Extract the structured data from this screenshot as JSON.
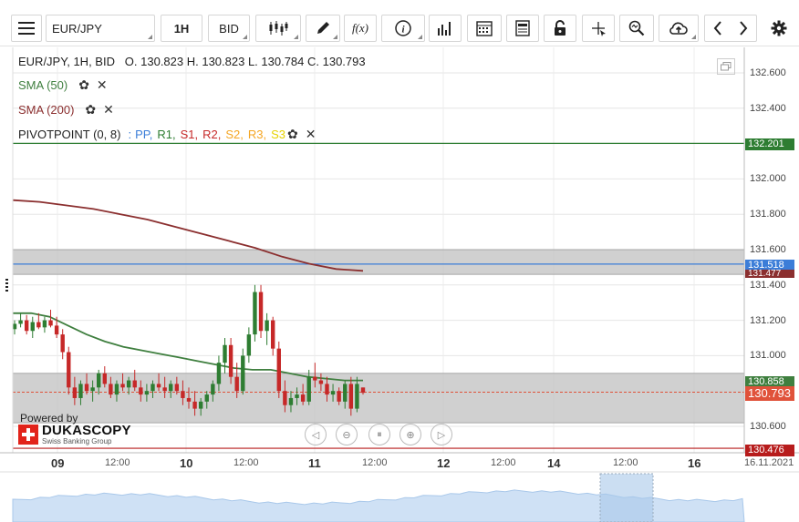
{
  "toolbar": {
    "instrument": "EUR/JPY",
    "period": "1H",
    "side": "BID",
    "function_label": "f(x)"
  },
  "legend": {
    "ohlc": "EUR/JPY, 1H, BID   O. 130.823 H. 130.823 L. 130.784 C. 130.793",
    "sma50": "SMA (50)",
    "sma200": "SMA (200)",
    "pivot_prefix": "PIVOTPOINT (0, 8)",
    "pivot_sep": ":",
    "pivot_items": [
      {
        "label": "PP,",
        "color": "#3b7dd8"
      },
      {
        "label": "R1,",
        "color": "#2e7d32"
      },
      {
        "label": "S1,",
        "color": "#c62828"
      },
      {
        "label": "R2,",
        "color": "#c62828"
      },
      {
        "label": "S2,",
        "color": "#f5a623"
      },
      {
        "label": "R3,",
        "color": "#f5a623"
      },
      {
        "label": "S3",
        "color": "#e6d200"
      }
    ]
  },
  "yaxis": {
    "ticks": [
      "132.600",
      "132.400",
      "132.000",
      "131.800",
      "131.600",
      "131.400",
      "131.200",
      "131.000",
      "130.600"
    ]
  },
  "tags": {
    "r1": "132.201",
    "pp": "131.518",
    "sma200": "131.477",
    "sma50": "130.858",
    "close": "130.793",
    "s1": "130.476"
  },
  "xaxis": {
    "labels": [
      {
        "text": "09",
        "big": true
      },
      {
        "text": "12:00",
        "big": false
      },
      {
        "text": "10",
        "big": true
      },
      {
        "text": "12:00",
        "big": false
      },
      {
        "text": "11",
        "big": true
      },
      {
        "text": "12:00",
        "big": false
      },
      {
        "text": "12",
        "big": true
      },
      {
        "text": "12:00",
        "big": false
      },
      {
        "text": "14",
        "big": true
      },
      {
        "text": "12:00",
        "big": false
      },
      {
        "text": "16",
        "big": true
      },
      {
        "text": "16.11.2021",
        "big": false
      }
    ]
  },
  "branding": {
    "powered": "Powered by",
    "name": "DUKASCOPY",
    "sub": "Swiss Banking Group"
  },
  "colors": {
    "up": "#2e7d32",
    "down": "#c62828",
    "sma50": "#3f7f3f",
    "sma200": "#8b2f2f",
    "pp": "#3b7dd8",
    "r1": "#2e7d32",
    "s1": "#b71c1c",
    "close": "#e0523a"
  },
  "chart_data": {
    "type": "candlestick",
    "instrument": "EUR/JPY",
    "timeframe": "1H",
    "ylim": [
      130.47,
      132.7
    ],
    "levels": {
      "R1": 132.201,
      "PP": 131.518,
      "S1": 130.476,
      "SMA200_last": 131.477,
      "SMA50_last": 130.858,
      "close": 130.793
    },
    "zones": [
      [
        131.46,
        131.6
      ],
      [
        130.62,
        130.9
      ]
    ],
    "sma200": [
      131.88,
      131.87,
      131.85,
      131.83,
      131.8,
      131.77,
      131.73,
      131.69,
      131.65,
      131.61,
      131.56,
      131.52,
      131.49,
      131.48
    ],
    "sma50": [
      131.24,
      131.24,
      131.22,
      131.17,
      131.12,
      131.08,
      131.05,
      131.03,
      131.01,
      130.99,
      130.97,
      130.95,
      130.93,
      130.92,
      130.92,
      130.9,
      130.88,
      130.87,
      130.86,
      130.86
    ],
    "candles": [
      [
        131.15,
        131.2,
        131.12,
        131.18
      ],
      [
        131.18,
        131.24,
        131.16,
        131.2
      ],
      [
        131.2,
        131.23,
        131.12,
        131.14
      ],
      [
        131.14,
        131.22,
        131.1,
        131.19
      ],
      [
        131.19,
        131.24,
        131.15,
        131.16
      ],
      [
        131.16,
        131.22,
        131.13,
        131.2
      ],
      [
        131.2,
        131.26,
        131.16,
        131.17
      ],
      [
        131.17,
        131.22,
        131.1,
        131.12
      ],
      [
        131.12,
        131.15,
        130.98,
        131.02
      ],
      [
        131.02,
        131.05,
        130.78,
        130.82
      ],
      [
        130.82,
        130.88,
        130.72,
        130.76
      ],
      [
        130.76,
        130.86,
        130.72,
        130.84
      ],
      [
        130.84,
        130.9,
        130.78,
        130.8
      ],
      [
        130.8,
        130.86,
        130.74,
        130.82
      ],
      [
        130.82,
        130.92,
        130.78,
        130.9
      ],
      [
        130.9,
        130.94,
        130.82,
        130.84
      ],
      [
        130.84,
        130.88,
        130.76,
        130.78
      ],
      [
        130.78,
        130.86,
        130.74,
        130.84
      ],
      [
        130.84,
        130.9,
        130.8,
        130.82
      ],
      [
        130.82,
        130.88,
        130.78,
        130.86
      ],
      [
        130.86,
        130.92,
        130.8,
        130.82
      ],
      [
        130.82,
        130.86,
        130.74,
        130.78
      ],
      [
        130.78,
        130.84,
        130.74,
        130.8
      ],
      [
        130.8,
        130.86,
        130.76,
        130.84
      ],
      [
        130.84,
        130.9,
        130.8,
        130.82
      ],
      [
        130.82,
        130.88,
        130.76,
        130.8
      ],
      [
        130.8,
        130.86,
        130.76,
        130.84
      ],
      [
        130.84,
        130.88,
        130.78,
        130.8
      ],
      [
        130.8,
        130.86,
        130.72,
        130.76
      ],
      [
        130.76,
        130.82,
        130.7,
        130.74
      ],
      [
        130.74,
        130.8,
        130.66,
        130.7
      ],
      [
        130.7,
        130.76,
        130.66,
        130.74
      ],
      [
        130.74,
        130.8,
        130.7,
        130.78
      ],
      [
        130.78,
        130.86,
        130.74,
        130.84
      ],
      [
        130.84,
        131.0,
        130.8,
        130.96
      ],
      [
        130.96,
        131.1,
        130.9,
        131.06
      ],
      [
        131.06,
        131.1,
        130.84,
        130.88
      ],
      [
        130.88,
        130.96,
        130.76,
        130.8
      ],
      [
        130.8,
        131.04,
        130.78,
        131.0
      ],
      [
        131.0,
        131.16,
        130.96,
        131.12
      ],
      [
        131.12,
        131.4,
        131.08,
        131.36
      ],
      [
        131.36,
        131.4,
        131.1,
        131.14
      ],
      [
        131.14,
        131.24,
        131.06,
        131.2
      ],
      [
        131.2,
        131.22,
        131.0,
        131.04
      ],
      [
        131.04,
        131.08,
        130.76,
        130.8
      ],
      [
        130.8,
        130.86,
        130.68,
        130.72
      ],
      [
        130.72,
        130.8,
        130.68,
        130.76
      ],
      [
        130.76,
        130.82,
        130.72,
        130.78
      ],
      [
        130.78,
        130.84,
        130.72,
        130.74
      ],
      [
        130.74,
        130.92,
        130.72,
        130.88
      ],
      [
        130.88,
        130.96,
        130.82,
        130.86
      ],
      [
        130.86,
        130.9,
        130.8,
        130.84
      ],
      [
        130.84,
        130.88,
        130.74,
        130.78
      ],
      [
        130.78,
        130.84,
        130.74,
        130.8
      ],
      [
        130.8,
        130.82,
        130.72,
        130.74
      ],
      [
        130.74,
        130.86,
        130.7,
        130.84
      ],
      [
        130.84,
        130.88,
        130.66,
        130.7
      ],
      [
        130.7,
        130.88,
        130.68,
        130.84
      ],
      [
        130.82,
        130.82,
        130.78,
        130.79
      ]
    ]
  }
}
